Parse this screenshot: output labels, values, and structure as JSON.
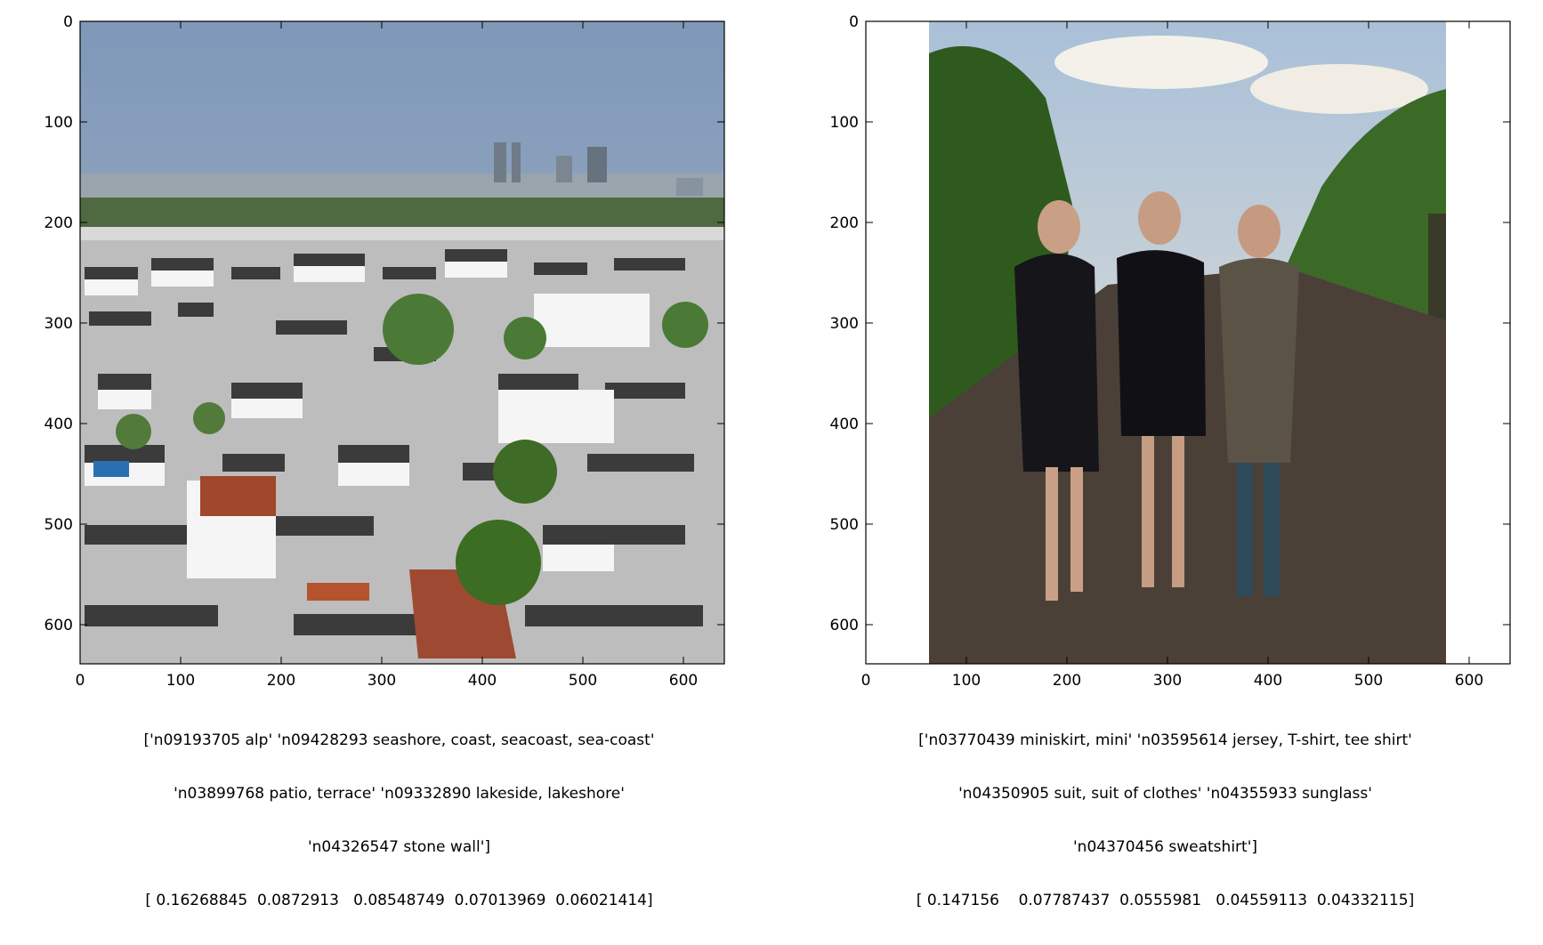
{
  "panels": [
    {
      "x_ticks": [
        "0",
        "100",
        "200",
        "300",
        "400",
        "500",
        "600"
      ],
      "y_ticks": [
        "0",
        "100",
        "200",
        "300",
        "400",
        "500",
        "600"
      ],
      "image_description_icon": "photo-city-rooftops",
      "caption_lines": [
        "['n09193705 alp' 'n09428293 seashore, coast, seacoast, sea-coast'",
        "'n03899768 patio, terrace' 'n09332890 lakeside, lakeshore'",
        "'n04326547 stone wall']",
        "[ 0.16268845  0.0872913   0.08548749  0.07013969  0.06021414]"
      ]
    },
    {
      "x_ticks": [
        "0",
        "100",
        "200",
        "300",
        "400",
        "500",
        "600"
      ],
      "y_ticks": [
        "0",
        "100",
        "200",
        "300",
        "400",
        "500",
        "600"
      ],
      "image_description_icon": "photo-three-women-vineyard",
      "caption_lines": [
        "['n03770439 miniskirt, mini' 'n03595614 jersey, T-shirt, tee shirt'",
        "'n04350905 suit, suit of clothes' 'n04355933 sunglass'",
        "'n04370456 sweatshirt']",
        "[ 0.147156    0.07787437  0.0555981   0.04559113  0.04332115]"
      ]
    }
  ],
  "colors": {
    "sky_left": "#8fa6c3",
    "roof_dark": "#3a3a3a",
    "wall_white": "#f2f2f2",
    "tree_green": "#3f6b2a",
    "sky_right": "#cfdbe6",
    "vine_green": "#2f5a1e",
    "ground_brown": "#4a4038"
  }
}
